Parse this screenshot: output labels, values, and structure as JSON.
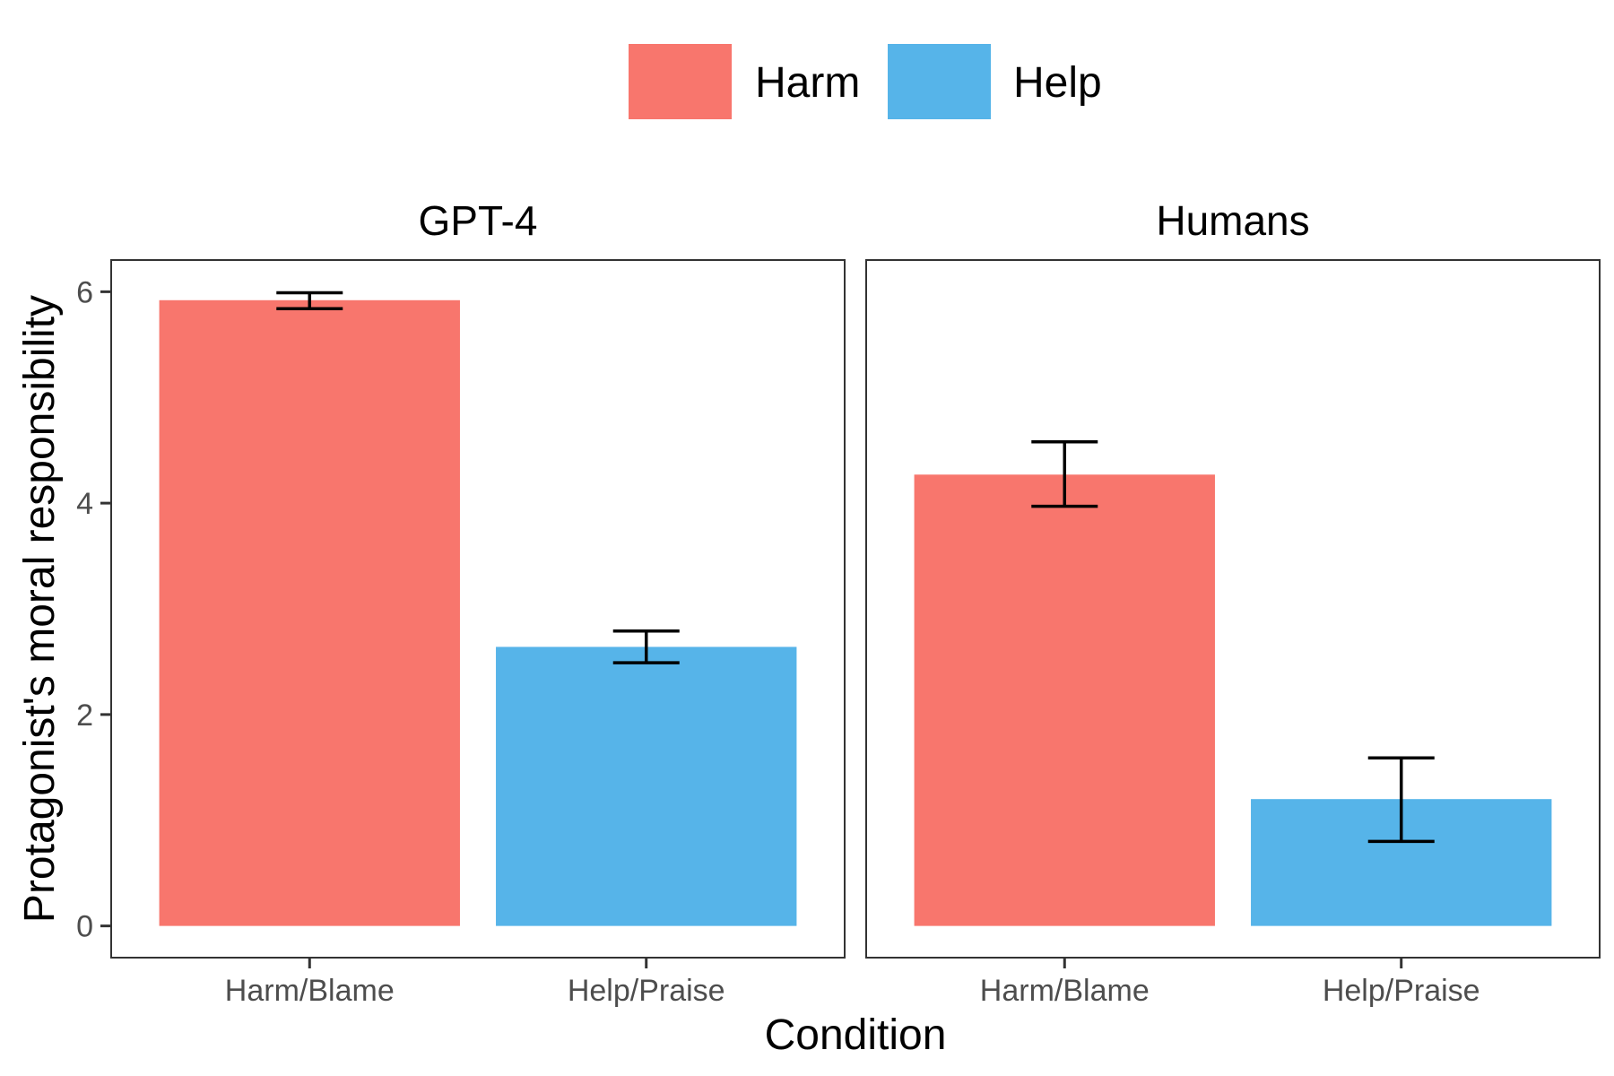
{
  "chart_data": {
    "type": "bar",
    "facets": [
      "GPT-4",
      "Humans"
    ],
    "categories": [
      "Harm/Blame",
      "Help/Praise"
    ],
    "legend": [
      {
        "name": "Harm",
        "color": "#F8766D"
      },
      {
        "name": "Help",
        "color": "#56B4E9"
      }
    ],
    "panels": [
      {
        "title": "GPT-4",
        "bars": [
          {
            "category": "Harm/Blame",
            "group": "Harm",
            "value": 5.92,
            "err_low": 5.84,
            "err_high": 5.99
          },
          {
            "category": "Help/Praise",
            "group": "Help",
            "value": 2.64,
            "err_low": 2.49,
            "err_high": 2.79
          }
        ]
      },
      {
        "title": "Humans",
        "bars": [
          {
            "category": "Harm/Blame",
            "group": "Harm",
            "value": 4.27,
            "err_low": 3.97,
            "err_high": 4.58
          },
          {
            "category": "Help/Praise",
            "group": "Help",
            "value": 1.2,
            "err_low": 0.8,
            "err_high": 1.59
          }
        ]
      }
    ],
    "ylim": [
      -0.3,
      6.3
    ],
    "yticks": [
      0,
      2,
      4,
      6
    ],
    "xlabel": "Condition",
    "ylabel": "Protagonist's moral responsibility",
    "legend_position": "top"
  }
}
